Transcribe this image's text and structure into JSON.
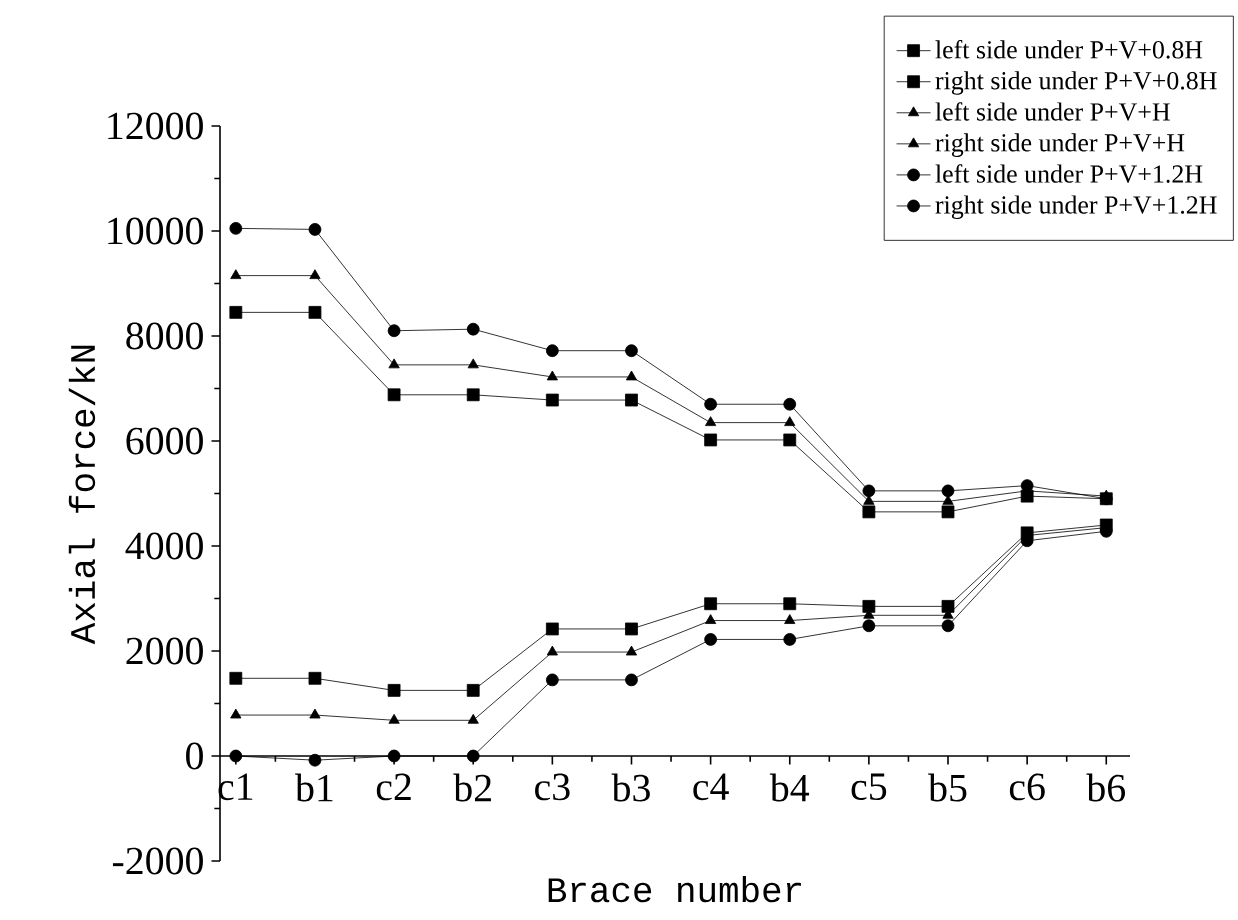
{
  "chart_data": {
    "type": "line",
    "xlabel": "Brace number",
    "ylabel": "Axial force/kN",
    "categories": [
      "c1",
      "b1",
      "c2",
      "b2",
      "c3",
      "b3",
      "c4",
      "b4",
      "c5",
      "b5",
      "c6",
      "b6"
    ],
    "ylim": [
      -2000,
      12000
    ],
    "yticks": [
      -2000,
      0,
      2000,
      4000,
      6000,
      8000,
      10000,
      12000
    ],
    "grid": false,
    "legend": "top right",
    "line_style": "solid",
    "series": [
      {
        "name": "left side under P+V+0.8H",
        "color": "#000000",
        "marker": "square",
        "values": [
          1480,
          1480,
          1250,
          1250,
          2420,
          2420,
          2900,
          2900,
          2850,
          2850,
          4250,
          4400
        ]
      },
      {
        "name": "right side under P+V+0.8H",
        "color": "#000000",
        "marker": "square",
        "values": [
          8450,
          8450,
          6880,
          6880,
          6780,
          6780,
          6020,
          6020,
          4650,
          4650,
          4950,
          4900
        ]
      },
      {
        "name": "left side under P+V+H",
        "color": "#000000",
        "marker": "triangle",
        "values": [
          780,
          780,
          680,
          680,
          1980,
          1980,
          2580,
          2580,
          2680,
          2680,
          4200,
          4350
        ]
      },
      {
        "name": "right side under P+V+H",
        "color": "#000000",
        "marker": "triangle",
        "values": [
          9150,
          9150,
          7450,
          7450,
          7220,
          7220,
          6350,
          6350,
          4850,
          4850,
          5050,
          4950
        ]
      },
      {
        "name": "left side under P+V+1.2H",
        "color": "#000000",
        "marker": "circle",
        "values": [
          0,
          -80,
          0,
          0,
          1450,
          1450,
          2220,
          2220,
          2480,
          2480,
          4100,
          4280
        ]
      },
      {
        "name": "right side under P+V+1.2H",
        "color": "#000000",
        "marker": "circle",
        "values": [
          10050,
          10030,
          8100,
          8130,
          7720,
          7720,
          6700,
          6700,
          5050,
          5050,
          5150,
          4900
        ]
      }
    ]
  }
}
